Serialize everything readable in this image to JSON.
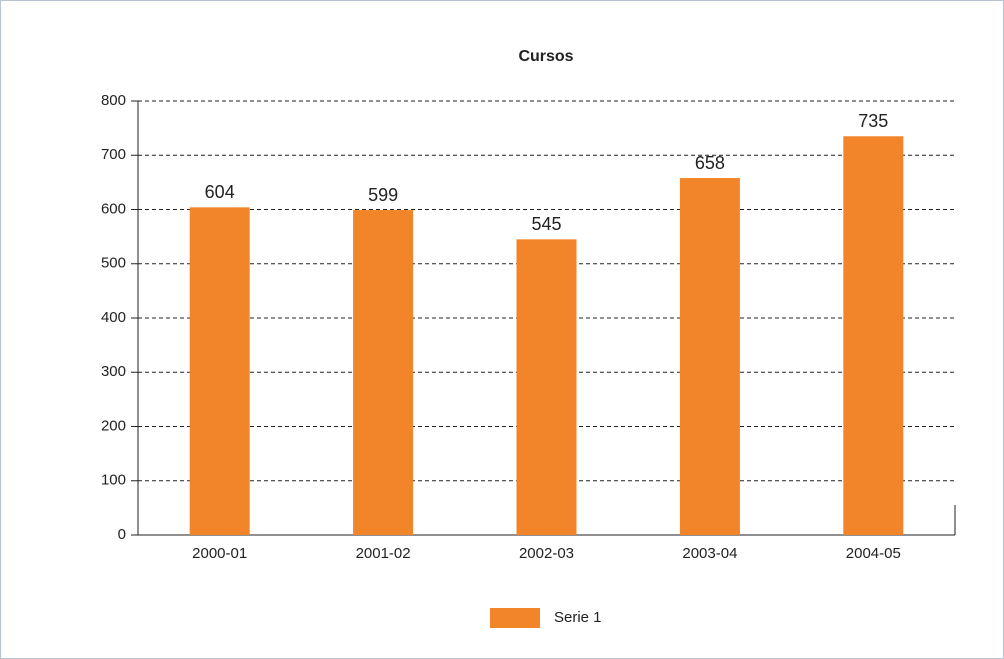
{
  "chart_data": {
    "type": "bar",
    "title": "Cursos",
    "categories": [
      "2000-01",
      "2001-02",
      "2002-03",
      "2003-04",
      "2004-05"
    ],
    "series": [
      {
        "name": "Serie 1",
        "color": "#f28529",
        "values": [
          604,
          599,
          545,
          658,
          735
        ]
      }
    ],
    "ylim": [
      0,
      800
    ],
    "yticks": [
      0,
      100,
      200,
      300,
      400,
      500,
      600,
      700,
      800
    ],
    "grid": true,
    "legend": "bottom"
  }
}
